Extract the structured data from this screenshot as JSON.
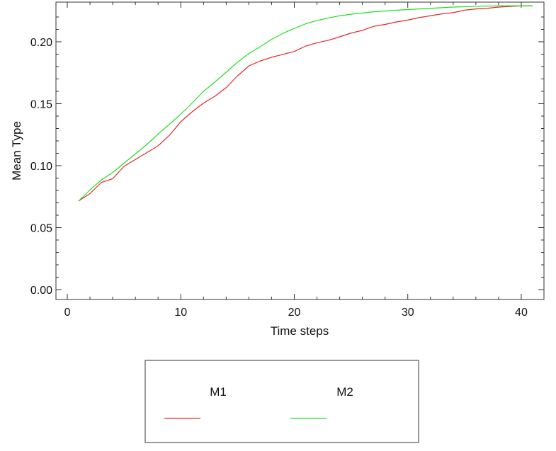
{
  "chart_data": {
    "type": "line",
    "title": "",
    "xlabel": "Time steps",
    "ylabel": "Mean Type",
    "xlim": [
      -1,
      42
    ],
    "ylim": [
      -0.008,
      0.232
    ],
    "xticks": [
      0,
      10,
      20,
      30,
      40
    ],
    "xtick_labels": [
      "0",
      "10",
      "20",
      "30",
      "40"
    ],
    "yticks": [
      0.0,
      0.05,
      0.1,
      0.15,
      0.2
    ],
    "ytick_labels": [
      "0.00",
      "0.05",
      "0.10",
      "0.15",
      "0.20"
    ],
    "grid": false,
    "legend_position": "bottom",
    "x": [
      1,
      2,
      3,
      4,
      5,
      6,
      7,
      8,
      9,
      10,
      11,
      12,
      13,
      14,
      15,
      16,
      17,
      18,
      19,
      20,
      21,
      22,
      23,
      24,
      25,
      26,
      27,
      28,
      29,
      30,
      31,
      32,
      33,
      34,
      35,
      36,
      37,
      38,
      39,
      40,
      41
    ],
    "series": [
      {
        "name": "M1",
        "color": "#e8262b",
        "values": [
          0.0715,
          0.0775,
          0.0865,
          0.0895,
          0.0995,
          0.105,
          0.1105,
          0.116,
          0.1245,
          0.1355,
          0.1435,
          0.1505,
          0.156,
          0.163,
          0.1725,
          0.1805,
          0.1845,
          0.1875,
          0.1898,
          0.1922,
          0.1965,
          0.1992,
          0.2012,
          0.204,
          0.207,
          0.2092,
          0.2125,
          0.214,
          0.216,
          0.2175,
          0.2195,
          0.221,
          0.2225,
          0.2235,
          0.2255,
          0.2265,
          0.227,
          0.228,
          0.2285,
          0.229,
          0.229
        ]
      },
      {
        "name": "M2",
        "color": "#22dd22",
        "values": [
          0.0715,
          0.0805,
          0.0885,
          0.0945,
          0.102,
          0.1095,
          0.117,
          0.1255,
          0.1335,
          0.1415,
          0.1505,
          0.16,
          0.1675,
          0.1755,
          0.1835,
          0.1905,
          0.196,
          0.202,
          0.2068,
          0.2108,
          0.2145,
          0.2172,
          0.2192,
          0.221,
          0.2222,
          0.2232,
          0.2242,
          0.2248,
          0.2255,
          0.226,
          0.2265,
          0.227,
          0.2275,
          0.228,
          0.2283,
          0.2286,
          0.2288,
          0.229,
          0.229,
          0.229,
          0.229
        ]
      }
    ]
  }
}
